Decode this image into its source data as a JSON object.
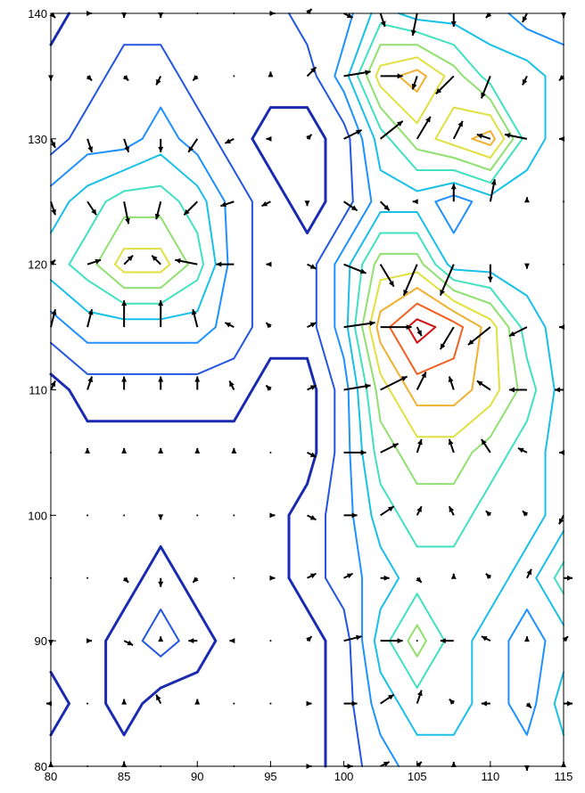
{
  "chart_data": {
    "type": "contour",
    "x": [
      80,
      82.5,
      85,
      87.5,
      90,
      92.5,
      95,
      97.5,
      100,
      102.5,
      105,
      107.5,
      110,
      112.5,
      115
    ],
    "y": [
      80,
      85,
      90,
      95,
      100,
      105,
      110,
      115,
      120,
      125,
      130,
      135,
      140
    ],
    "z": [
      [
        0,
        0,
        0,
        0,
        0,
        0,
        0,
        0,
        1,
        2,
        3,
        3,
        3,
        3,
        3
      ],
      [
        1,
        0,
        1,
        0,
        0,
        0,
        0,
        0,
        1,
        3,
        4,
        4,
        3,
        2,
        4
      ],
      [
        0,
        0,
        1,
        2,
        1,
        0,
        0,
        0,
        1,
        4,
        6,
        4,
        3,
        2,
        3
      ],
      [
        0,
        0,
        0,
        1,
        0,
        0,
        0,
        1,
        2,
        3,
        4,
        4,
        4,
        3,
        5
      ],
      [
        0,
        0,
        0,
        0,
        0,
        0,
        0,
        1,
        2,
        4,
        5,
        5,
        4,
        4,
        3
      ],
      [
        0,
        0,
        0,
        0,
        0,
        0,
        0,
        0,
        2,
        5,
        6,
        6,
        5,
        4,
        3
      ],
      [
        0,
        1,
        1,
        1,
        1,
        1,
        0,
        0,
        2,
        6,
        8,
        8,
        7,
        5,
        3
      ],
      [
        2,
        3,
        3,
        3,
        3,
        2,
        1,
        1,
        3,
        8,
        10,
        9,
        7,
        4,
        3
      ],
      [
        4,
        5,
        7,
        7,
        5,
        2,
        1,
        1,
        3,
        6,
        6,
        3,
        3,
        3,
        3
      ],
      [
        3,
        4,
        5,
        5,
        4,
        2,
        1,
        0,
        1,
        3,
        3,
        2,
        3,
        3,
        3
      ],
      [
        1,
        2,
        2,
        3,
        2,
        1,
        0,
        0,
        1,
        4,
        6,
        7,
        8,
        4,
        3
      ],
      [
        1,
        1,
        2,
        2,
        1,
        1,
        1,
        1,
        3,
        7,
        8,
        6,
        4,
        4,
        3
      ],
      [
        0,
        1,
        1,
        1,
        1,
        1,
        1,
        2,
        2,
        4,
        3,
        3,
        3,
        2,
        2
      ]
    ],
    "levels": [
      0.5,
      1.5,
      2.5,
      3.5,
      4.5,
      5.5,
      6.5,
      7.5,
      8.5,
      9.5
    ],
    "colors": [
      "#1a2bb0",
      "#2255e0",
      "#1e90ff",
      "#18c0e8",
      "#40e0c0",
      "#90e070",
      "#e0e040",
      "#f0b030",
      "#f06020",
      "#d01010"
    ],
    "arrow_color": "#000000",
    "xlim": [
      80,
      115
    ],
    "ylim": [
      80,
      140
    ],
    "xticks": [
      80,
      85,
      90,
      95,
      100,
      105,
      110,
      115
    ],
    "yticks": [
      80,
      90,
      100,
      110,
      120,
      130,
      140
    ]
  }
}
